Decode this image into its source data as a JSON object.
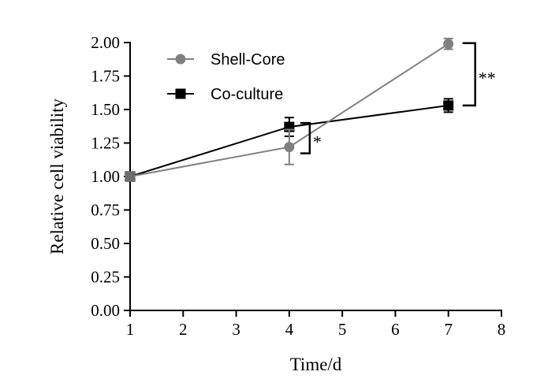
{
  "chart_data": {
    "type": "line",
    "xlabel": "Time/d",
    "ylabel": "Relative cell viability",
    "xlim": [
      1,
      8
    ],
    "ylim": [
      0,
      2
    ],
    "x_ticks": [
      "1",
      "2",
      "3",
      "4",
      "5",
      "6",
      "7",
      "8"
    ],
    "y_ticks": [
      "0.00",
      "0.25",
      "0.50",
      "0.75",
      "1.00",
      "1.25",
      "1.50",
      "1.75",
      "2.00"
    ],
    "grid": false,
    "legend_position": "top-left",
    "series": [
      {
        "name": "Shell-Core",
        "marker": "circle",
        "color": "#808080",
        "x": [
          1,
          4,
          7
        ],
        "y": [
          1.0,
          1.22,
          1.99
        ],
        "error": [
          0.0,
          0.13,
          0.04
        ]
      },
      {
        "name": "Co-culture",
        "marker": "square",
        "color": "#000000",
        "x": [
          1,
          4,
          7
        ],
        "y": [
          1.0,
          1.37,
          1.53
        ],
        "error": [
          0.0,
          0.07,
          0.05
        ]
      }
    ],
    "annotations": [
      {
        "label": "*",
        "x": 4,
        "y_range": [
          1.22,
          1.37
        ]
      },
      {
        "label": "**",
        "x": 7,
        "y_range": [
          1.53,
          1.99
        ]
      }
    ]
  }
}
